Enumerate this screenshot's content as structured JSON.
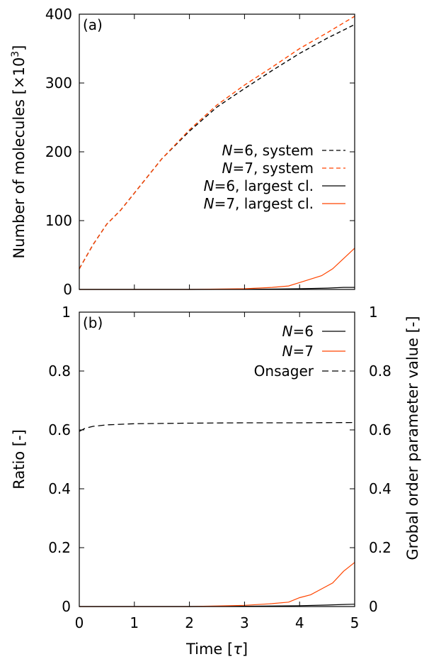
{
  "chart_data": [
    {
      "type": "line",
      "panel_label": "(a)",
      "ylabel": "Number of molecules [×10³]",
      "ylabel_main": "Number of molecules [×10",
      "ylabel_sup": "3",
      "ylabel_end": "]",
      "ylim": [
        0,
        400
      ],
      "yticks": [
        0,
        100,
        200,
        300,
        400
      ],
      "xlim": [
        0,
        5
      ],
      "xticks": [
        0,
        1,
        2,
        3,
        4,
        5
      ],
      "show_x_tick_labels": false,
      "legend_position": "center-right",
      "series": [
        {
          "name": "N=6, system",
          "name_italic": "N",
          "name_rest": "=6, system",
          "color": "#000000",
          "style": "dashed",
          "x": [
            0,
            0.25,
            0.5,
            0.75,
            1,
            1.5,
            2,
            2.5,
            3,
            3.5,
            4,
            4.5,
            5
          ],
          "y": [
            30,
            65,
            95,
            115,
            140,
            190,
            230,
            265,
            292,
            318,
            343,
            365,
            385
          ]
        },
        {
          "name": "N=7, system",
          "name_italic": "N",
          "name_rest": "=7, system",
          "color": "#ff4500",
          "style": "dashed",
          "x": [
            0,
            0.25,
            0.5,
            0.75,
            1,
            1.5,
            2,
            2.5,
            3,
            3.5,
            4,
            4.5,
            5
          ],
          "y": [
            30,
            65,
            95,
            115,
            140,
            190,
            232,
            268,
            297,
            323,
            350,
            373,
            397
          ]
        },
        {
          "name": "N=6, largest cl.",
          "name_italic": "N",
          "name_rest": "=6, largest cl.",
          "color": "#000000",
          "style": "solid",
          "x": [
            0,
            1,
            2,
            3,
            3.5,
            4,
            4.5,
            4.8,
            5
          ],
          "y": [
            0,
            0,
            0,
            0.2,
            0.5,
            1,
            2,
            3,
            3
          ]
        },
        {
          "name": "N=7, largest cl.",
          "name_italic": "N",
          "name_rest": "=7, largest cl.",
          "color": "#ff4500",
          "style": "solid",
          "x": [
            0,
            1,
            2,
            2.5,
            3,
            3.5,
            3.8,
            4,
            4.2,
            4.4,
            4.6,
            4.8,
            5
          ],
          "y": [
            0,
            0,
            0,
            0.5,
            1,
            3,
            5,
            10,
            15,
            20,
            30,
            45,
            60
          ]
        }
      ]
    },
    {
      "type": "line",
      "panel_label": "(b)",
      "xlabel": "Time [τ]",
      "xlabel_main": "Time [",
      "xlabel_tau": "τ",
      "xlabel_end": "]",
      "ylabel": "Ratio [-]",
      "ylabel_right": "Grobal order parameter value [-]",
      "ylim": [
        0,
        1
      ],
      "yticks": [
        "0",
        "0.2",
        "0.4",
        "0.6",
        "0.8",
        "1"
      ],
      "ytick_values": [
        0,
        0.2,
        0.4,
        0.6,
        0.8,
        1
      ],
      "xlim": [
        0,
        5
      ],
      "xticks": [
        "0",
        "1",
        "2",
        "3",
        "4",
        "5"
      ],
      "xtick_values": [
        0,
        1,
        2,
        3,
        4,
        5
      ],
      "legend_position": "top-right",
      "series": [
        {
          "name": "N=6",
          "name_italic": "N",
          "name_rest": "=6",
          "color": "#000000",
          "style": "solid",
          "x": [
            0,
            1,
            2,
            3,
            3.5,
            4,
            4.5,
            4.8,
            5
          ],
          "y": [
            0,
            0,
            0,
            0.001,
            0.002,
            0.003,
            0.005,
            0.007,
            0.008
          ]
        },
        {
          "name": "N=7",
          "name_italic": "N",
          "name_rest": "=7",
          "color": "#ff4500",
          "style": "solid",
          "x": [
            0,
            1,
            2,
            2.5,
            3,
            3.5,
            3.8,
            4,
            4.2,
            4.4,
            4.6,
            4.8,
            5
          ],
          "y": [
            0,
            0,
            0,
            0.002,
            0.004,
            0.01,
            0.015,
            0.03,
            0.04,
            0.06,
            0.08,
            0.12,
            0.15
          ]
        },
        {
          "name": "Onsager",
          "color": "#000000",
          "style": "dashed",
          "x": [
            0,
            0.1,
            0.25,
            0.5,
            0.75,
            1,
            1.5,
            2,
            3,
            4,
            5
          ],
          "y": [
            0.595,
            0.605,
            0.612,
            0.617,
            0.619,
            0.621,
            0.622,
            0.623,
            0.624,
            0.624,
            0.625
          ]
        }
      ]
    }
  ]
}
